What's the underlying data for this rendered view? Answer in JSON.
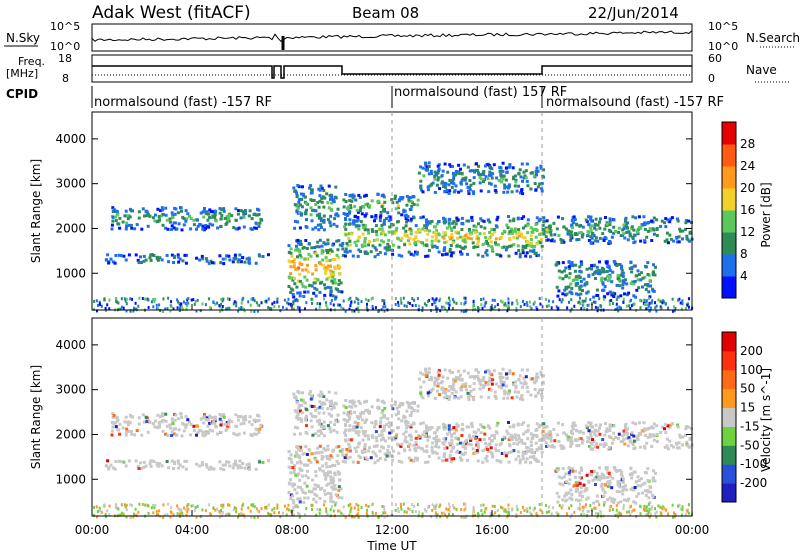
{
  "header": {
    "station": "Adak West (fitACF)",
    "beam": "Beam 08",
    "date": "22/Jun/2014"
  },
  "noise_panel": {
    "left_label": "N.Sky",
    "right_label": "N.Search",
    "left_ticks": [
      "10^5",
      "10^0"
    ],
    "right_ticks": [
      "10^5",
      "10^0"
    ]
  },
  "freq_panel": {
    "left_label_1": "Freq.",
    "left_label_2": "[MHz]",
    "right_label": "Nave",
    "left_ticks": [
      "18",
      "8"
    ],
    "right_ticks": [
      "60",
      "0"
    ]
  },
  "cpid": {
    "label": "CPID",
    "segments": [
      {
        "text": "normalsound (fast) -157 RF",
        "start_hour": 0
      },
      {
        "text": "normalsound (fast) 157 RF",
        "start_hour": 12
      },
      {
        "text": "normalsound (fast) -157 RF",
        "start_hour": 18
      }
    ]
  },
  "chart_data": [
    {
      "type": "heatmap",
      "panel": "power",
      "ylabel": "Slant Range [km]",
      "yticks": [
        1000,
        2000,
        3000,
        4000
      ],
      "ylim": [
        180,
        4600
      ],
      "xlim_hours": [
        0,
        24
      ],
      "colorbar": {
        "label": "Power [dB]",
        "ticks": [
          "4",
          "8",
          "12",
          "16",
          "20",
          "24",
          "28"
        ],
        "colors": [
          "#0010ff",
          "#1e6ef0",
          "#2e8b57",
          "#5cc85c",
          "#f2d02a",
          "#ff9a1e",
          "#ff5a14",
          "#e60000"
        ]
      },
      "bands": [
        {
          "hours": [
            0.7,
            6.8
          ],
          "range_km": [
            2000,
            2500
          ],
          "level": 0.35
        },
        {
          "hours": [
            0.5,
            7.0
          ],
          "range_km": [
            1250,
            1450
          ],
          "level": 0.2
        },
        {
          "hours": [
            7.8,
            10.0
          ],
          "range_km": [
            500,
            1800
          ],
          "level": 0.7
        },
        {
          "hours": [
            8.0,
            9.8
          ],
          "range_km": [
            2000,
            3000
          ],
          "level": 0.3
        },
        {
          "hours": [
            10.0,
            18.0
          ],
          "range_km": [
            1400,
            2300
          ],
          "level": 0.6
        },
        {
          "hours": [
            10.0,
            13.0
          ],
          "range_km": [
            2300,
            2800
          ],
          "level": 0.4
        },
        {
          "hours": [
            13.0,
            18.0
          ],
          "range_km": [
            2800,
            3500
          ],
          "level": 0.25
        },
        {
          "hours": [
            18.0,
            24.0
          ],
          "range_km": [
            1700,
            2300
          ],
          "level": 0.35
        },
        {
          "hours": [
            18.5,
            22.5
          ],
          "range_km": [
            500,
            1300
          ],
          "level": 0.3
        }
      ]
    },
    {
      "type": "heatmap",
      "panel": "velocity",
      "ylabel": "Slant Range [km]",
      "yticks": [
        1000,
        2000,
        3000,
        4000
      ],
      "ylim": [
        180,
        4600
      ],
      "xlim_hours": [
        0,
        24
      ],
      "xlabel": "Time UT",
      "xticks": [
        "00:00",
        "04:00",
        "08:00",
        "12:00",
        "16:00",
        "20:00",
        "00:00"
      ],
      "colorbar": {
        "label": "Velocity [m s^-1]",
        "ticks": [
          "200",
          "100",
          "50",
          "15",
          "-15",
          "-50",
          "-100",
          "-200"
        ],
        "colors": [
          "#2020c0",
          "#2a4fd8",
          "#2e8b57",
          "#6fd040",
          "#c8c8c8",
          "#ff9a1e",
          "#ff6a14",
          "#ff3010",
          "#e00000"
        ]
      }
    }
  ]
}
